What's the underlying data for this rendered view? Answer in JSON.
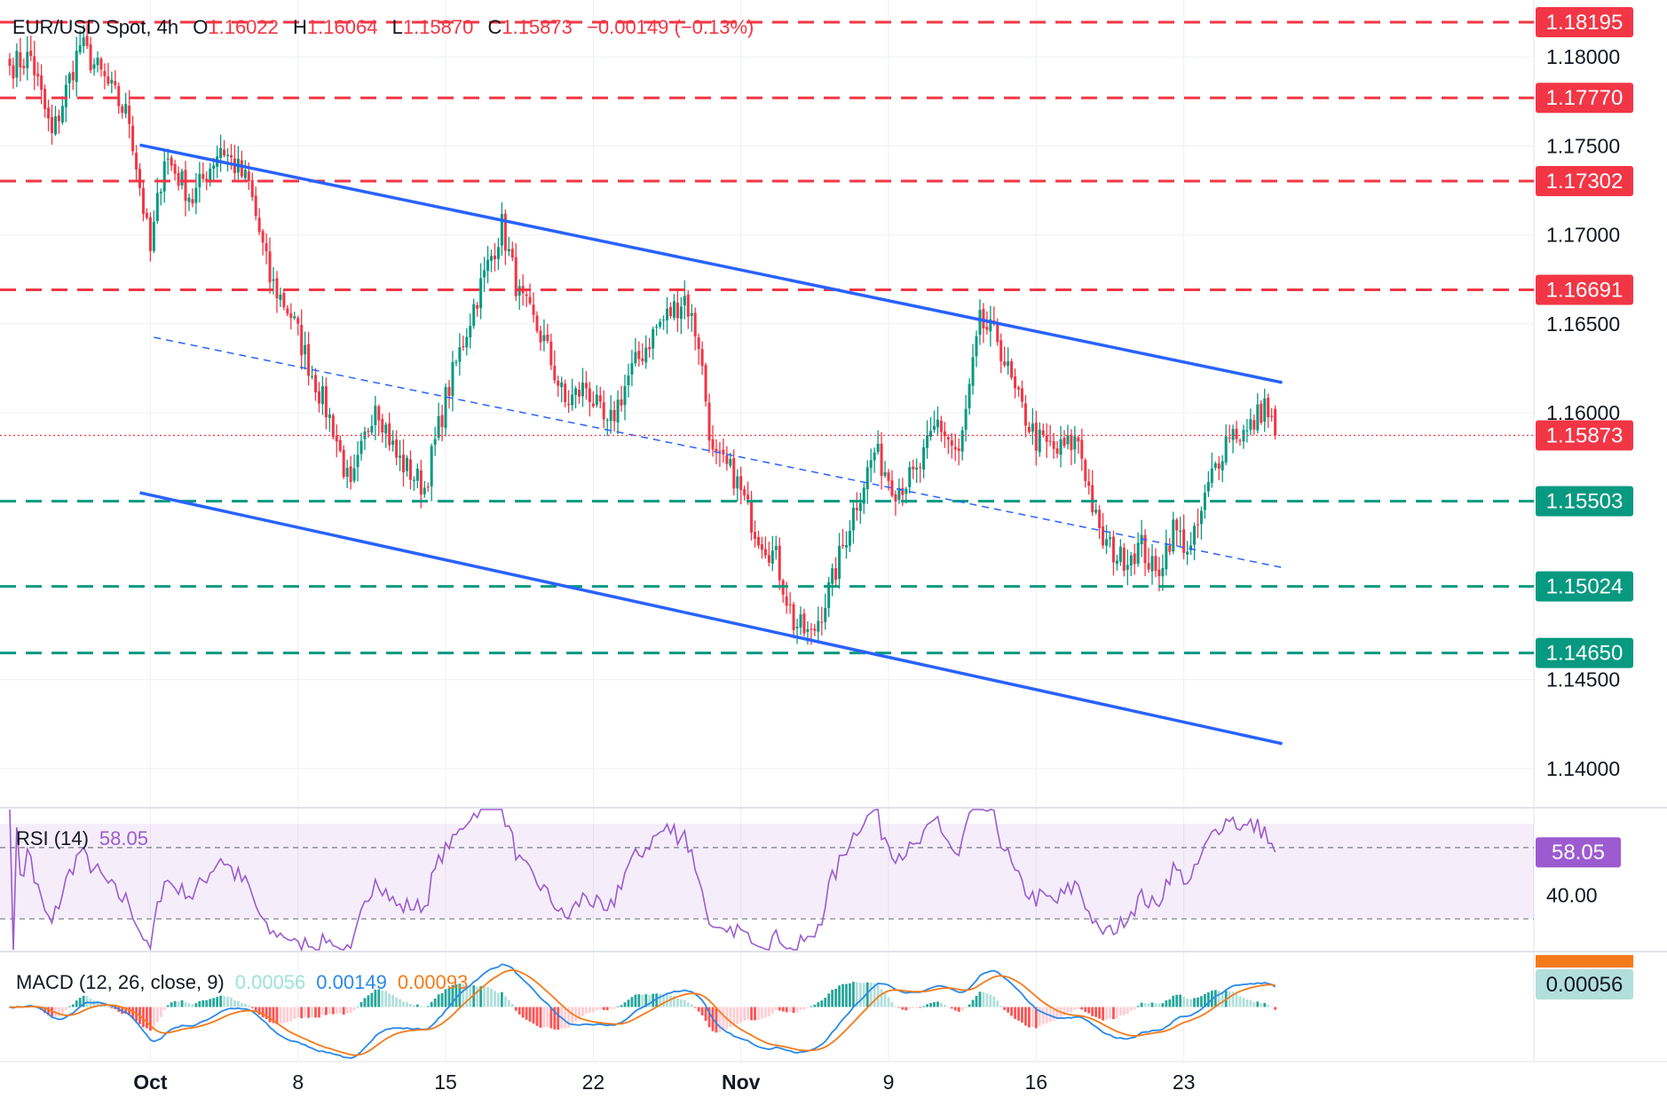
{
  "header": {
    "symbol": "EUR/USD Spot",
    "interval": "4h",
    "open_label": "O",
    "open": "1.16022",
    "high_label": "H",
    "high": "1.16064",
    "low_label": "L",
    "low": "1.15870",
    "close_label": "C",
    "close": "1.15873",
    "change": "−0.00149 (−0.13%)"
  },
  "rsi_label": {
    "name": "RSI (14)",
    "value": "58.05"
  },
  "macd_label": {
    "name": "MACD (12, 26, close, 9)",
    "hist": "0.00056",
    "macd": "0.00149",
    "signal": "0.00093"
  },
  "colors": {
    "up": "#089981",
    "down": "#f23645",
    "resistance": "#f23645",
    "support": "#089981",
    "channel": "#2962ff",
    "rsi": "#9c5bd0",
    "macd": "#2a89e8",
    "signal": "#f57a1a"
  },
  "chart_data": {
    "type": "candlestick",
    "x_labels": [
      {
        "label": "Oct",
        "t": 40
      },
      {
        "label": "8",
        "t": 82
      },
      {
        "label": "15",
        "t": 124
      },
      {
        "label": "22",
        "t": 166
      },
      {
        "label": "Nov",
        "t": 208
      },
      {
        "label": "9",
        "t": 250
      },
      {
        "label": "16",
        "t": 292
      },
      {
        "label": "23",
        "t": 334
      }
    ],
    "y_ticks": [
      "1.18000",
      "1.17500",
      "1.17000",
      "1.16500",
      "1.16000",
      "1.14500",
      "1.14000"
    ],
    "ylim": [
      1.1378,
      1.1832
    ],
    "resistance_levels": [
      "1.18195",
      "1.17770",
      "1.17302",
      "1.16691"
    ],
    "support_levels": [
      "1.15503",
      "1.15024",
      "1.14650"
    ],
    "last_price": "1.15873",
    "channel": {
      "upper": {
        "start": {
          "t": -25,
          "price": 1.1776
        },
        "end": {
          "t": 362,
          "price": 1.1617
        }
      },
      "lower": {
        "start": {
          "t": -25,
          "price": 1.1582
        },
        "end": {
          "t": 362,
          "price": 1.1414
        }
      },
      "mid": {
        "start": {
          "t": -25,
          "price": 1.1669
        },
        "end": {
          "t": 362,
          "price": 1.1513
        }
      }
    },
    "price_anchors": [
      [
        0,
        1.1795
      ],
      [
        6,
        1.18
      ],
      [
        12,
        1.1755
      ],
      [
        20,
        1.1807
      ],
      [
        26,
        1.179
      ],
      [
        34,
        1.1765
      ],
      [
        40,
        1.169
      ],
      [
        44,
        1.1745
      ],
      [
        52,
        1.172
      ],
      [
        60,
        1.175
      ],
      [
        68,
        1.1728
      ],
      [
        74,
        1.1675
      ],
      [
        80,
        1.1655
      ],
      [
        86,
        1.1622
      ],
      [
        92,
        1.1592
      ],
      [
        97,
        1.1555
      ],
      [
        104,
        1.1608
      ],
      [
        110,
        1.1575
      ],
      [
        118,
        1.1558
      ],
      [
        124,
        1.1608
      ],
      [
        132,
        1.166
      ],
      [
        140,
        1.1705
      ],
      [
        145,
        1.1665
      ],
      [
        152,
        1.164
      ],
      [
        158,
        1.1605
      ],
      [
        164,
        1.1615
      ],
      [
        170,
        1.159
      ],
      [
        176,
        1.162
      ],
      [
        184,
        1.1648
      ],
      [
        192,
        1.1665
      ],
      [
        196,
        1.164
      ],
      [
        200,
        1.1575
      ],
      [
        206,
        1.1565
      ],
      [
        212,
        1.1535
      ],
      [
        218,
        1.1518
      ],
      [
        223,
        1.1482
      ],
      [
        228,
        1.1474
      ],
      [
        234,
        1.1505
      ],
      [
        240,
        1.1545
      ],
      [
        246,
        1.1578
      ],
      [
        252,
        1.1558
      ],
      [
        258,
        1.1565
      ],
      [
        264,
        1.1595
      ],
      [
        270,
        1.1575
      ],
      [
        276,
        1.165
      ],
      [
        281,
        1.1642
      ],
      [
        286,
        1.161
      ],
      [
        292,
        1.1585
      ],
      [
        298,
        1.1578
      ],
      [
        304,
        1.1585
      ],
      [
        310,
        1.153
      ],
      [
        316,
        1.1518
      ],
      [
        322,
        1.1525
      ],
      [
        326,
        1.1508
      ],
      [
        331,
        1.1535
      ],
      [
        336,
        1.1522
      ],
      [
        342,
        1.1565
      ],
      [
        347,
        1.159
      ],
      [
        352,
        1.1588
      ],
      [
        357,
        1.1605
      ],
      [
        360,
        1.1587
      ]
    ],
    "rsi": {
      "value": "58.05",
      "tick": "40.00",
      "ylim": [
        17,
        76
      ],
      "band": [
        30,
        70
      ],
      "ref_line": 60
    },
    "macd": {
      "hist": "0.00056",
      "macd": "0.00149",
      "signal": "0.00093"
    }
  }
}
